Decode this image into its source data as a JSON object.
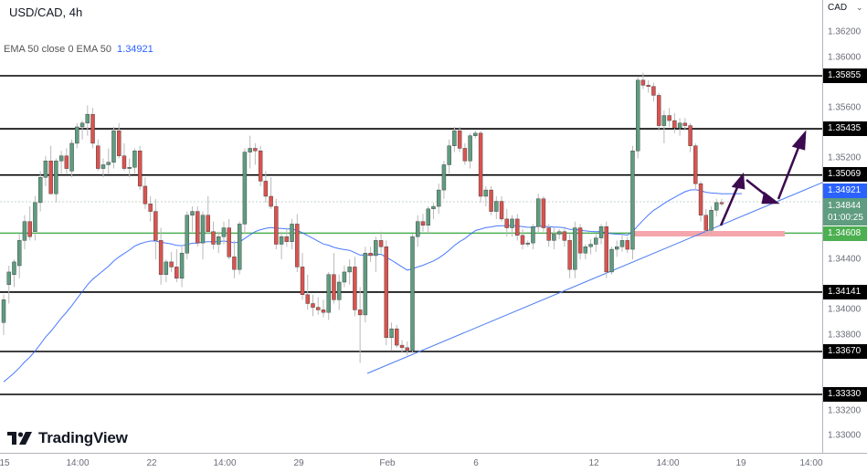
{
  "header": {
    "symbol_title": "USD/CAD, 4h",
    "indicator_legend": "EMA 50 close 0 EMA 50",
    "indicator_value": "1.34921"
  },
  "price_axis": {
    "currency": "CAD",
    "ticks": [
      "1.36200",
      "1.36000",
      "1.35600",
      "1.35200",
      "1.34400",
      "1.34000",
      "1.33800",
      "1.33200",
      "1.33000"
    ]
  },
  "time_axis": {
    "ticks": [
      "15",
      "14:00",
      "22",
      "14:00",
      "29",
      "Feb",
      "6",
      "12",
      "14:00",
      "19",
      "14:00"
    ]
  },
  "price_tags": {
    "r1": "1.35855",
    "r2": "1.35435",
    "r3": "1.35069",
    "ema": "1.34921",
    "current_price": "1.34844",
    "countdown": "01:00:25",
    "support_green": "1.34608",
    "s1": "1.34141",
    "s2": "1.33670",
    "s3": "1.33330"
  },
  "branding": {
    "logo_text": "TradingView"
  },
  "colors": {
    "bull": "#5f9c80",
    "bear": "#d9534f",
    "ema": "#2962ff",
    "support_green": "#4caf50",
    "zone_pink": "#f4a6ac",
    "arrow": "#3d0a4f",
    "level_black": "#000000"
  },
  "chart_data": {
    "type": "candlestick",
    "title": "USD/CAD, 4h",
    "xlabel": "",
    "ylabel": "CAD",
    "ylim": [
      1.329,
      1.3645
    ],
    "x_ticks": [
      "15",
      "14:00",
      "22",
      "14:00",
      "29",
      "Feb",
      "6",
      "12",
      "14:00",
      "19",
      "14:00"
    ],
    "y_ticks": [
      1.33,
      1.332,
      1.334,
      1.336,
      1.338,
      1.34,
      1.342,
      1.344,
      1.346,
      1.348,
      1.35,
      1.352,
      1.354,
      1.356,
      1.358,
      1.36,
      1.362
    ],
    "horizontal_levels": [
      {
        "name": "resistance",
        "value": 1.35855,
        "color": "#000000"
      },
      {
        "name": "resistance",
        "value": 1.35435,
        "color": "#000000"
      },
      {
        "name": "resistance",
        "value": 1.35069,
        "color": "#000000"
      },
      {
        "name": "support",
        "value": 1.34608,
        "color": "#4caf50"
      },
      {
        "name": "support",
        "value": 1.34141,
        "color": "#000000"
      },
      {
        "name": "support",
        "value": 1.3367,
        "color": "#000000"
      },
      {
        "name": "support",
        "value": 1.3333,
        "color": "#000000"
      }
    ],
    "indicators": [
      {
        "name": "EMA 50",
        "last": 1.34921
      }
    ],
    "last_price": 1.34844,
    "trendline": {
      "from": {
        "x": "Feb 1",
        "y": 1.336
      },
      "to": {
        "x": "Feb 21",
        "y": 1.3491
      }
    },
    "projection_arrows": "Bounce from ascending trendline toward 1.3507, pullback to trendline, then continuation toward 1.3540",
    "candles_note": "OHLC approximated from pixel positions",
    "candles": [
      {
        "o": 1.339,
        "h": 1.3412,
        "l": 1.338,
        "c": 1.3408
      },
      {
        "o": 1.342,
        "h": 1.3435,
        "l": 1.3405,
        "c": 1.343
      },
      {
        "o": 1.3428,
        "h": 1.344,
        "l": 1.3418,
        "c": 1.3438
      },
      {
        "o": 1.3435,
        "h": 1.346,
        "l": 1.3425,
        "c": 1.3455
      },
      {
        "o": 1.3455,
        "h": 1.3475,
        "l": 1.3448,
        "c": 1.347
      },
      {
        "o": 1.347,
        "h": 1.3482,
        "l": 1.3455,
        "c": 1.3458
      },
      {
        "o": 1.3462,
        "h": 1.349,
        "l": 1.3455,
        "c": 1.3485
      },
      {
        "o": 1.3485,
        "h": 1.351,
        "l": 1.3478,
        "c": 1.3505
      },
      {
        "o": 1.3505,
        "h": 1.3522,
        "l": 1.3498,
        "c": 1.3518
      },
      {
        "o": 1.3518,
        "h": 1.353,
        "l": 1.3505,
        "c": 1.3492
      },
      {
        "o": 1.3492,
        "h": 1.352,
        "l": 1.3485,
        "c": 1.3518
      },
      {
        "o": 1.3518,
        "h": 1.3526,
        "l": 1.3508,
        "c": 1.3522
      },
      {
        "o": 1.3522,
        "h": 1.3528,
        "l": 1.3508,
        "c": 1.3512
      },
      {
        "o": 1.351,
        "h": 1.3535,
        "l": 1.3505,
        "c": 1.3532
      },
      {
        "o": 1.3532,
        "h": 1.3548,
        "l": 1.3528,
        "c": 1.3545
      },
      {
        "o": 1.3545,
        "h": 1.355,
        "l": 1.3535,
        "c": 1.3548
      },
      {
        "o": 1.3548,
        "h": 1.3562,
        "l": 1.3538,
        "c": 1.3555
      },
      {
        "o": 1.3555,
        "h": 1.356,
        "l": 1.3528,
        "c": 1.3532
      },
      {
        "o": 1.353,
        "h": 1.3535,
        "l": 1.351,
        "c": 1.3512
      },
      {
        "o": 1.3512,
        "h": 1.352,
        "l": 1.3505,
        "c": 1.3515
      },
      {
        "o": 1.3515,
        "h": 1.3528,
        "l": 1.3508,
        "c": 1.3517
      },
      {
        "o": 1.3517,
        "h": 1.3545,
        "l": 1.3512,
        "c": 1.3542
      },
      {
        "o": 1.3542,
        "h": 1.3548,
        "l": 1.352,
        "c": 1.3522
      },
      {
        "o": 1.3522,
        "h": 1.3532,
        "l": 1.351,
        "c": 1.3512
      },
      {
        "o": 1.3512,
        "h": 1.352,
        "l": 1.3505,
        "c": 1.3513
      },
      {
        "o": 1.3513,
        "h": 1.3528,
        "l": 1.3508,
        "c": 1.3526
      },
      {
        "o": 1.3526,
        "h": 1.353,
        "l": 1.3495,
        "c": 1.3498
      },
      {
        "o": 1.3498,
        "h": 1.3505,
        "l": 1.348,
        "c": 1.3484
      },
      {
        "o": 1.3484,
        "h": 1.349,
        "l": 1.347,
        "c": 1.3478
      },
      {
        "o": 1.3478,
        "h": 1.3488,
        "l": 1.344,
        "c": 1.3455
      },
      {
        "o": 1.3455,
        "h": 1.3465,
        "l": 1.342,
        "c": 1.3428
      },
      {
        "o": 1.3428,
        "h": 1.344,
        "l": 1.3422,
        "c": 1.3438
      },
      {
        "o": 1.3438,
        "h": 1.3446,
        "l": 1.343,
        "c": 1.3434
      },
      {
        "o": 1.3434,
        "h": 1.3448,
        "l": 1.3422,
        "c": 1.3425
      },
      {
        "o": 1.3425,
        "h": 1.345,
        "l": 1.3418,
        "c": 1.3445
      },
      {
        "o": 1.3445,
        "h": 1.3478,
        "l": 1.344,
        "c": 1.3475
      },
      {
        "o": 1.3475,
        "h": 1.3482,
        "l": 1.3462,
        "c": 1.3478
      },
      {
        "o": 1.3478,
        "h": 1.3482,
        "l": 1.345,
        "c": 1.3453
      },
      {
        "o": 1.3453,
        "h": 1.3478,
        "l": 1.344,
        "c": 1.3475
      },
      {
        "o": 1.3475,
        "h": 1.349,
        "l": 1.346,
        "c": 1.3462
      },
      {
        "o": 1.3462,
        "h": 1.347,
        "l": 1.3448,
        "c": 1.3452
      },
      {
        "o": 1.3452,
        "h": 1.3462,
        "l": 1.3445,
        "c": 1.3458
      },
      {
        "o": 1.3458,
        "h": 1.347,
        "l": 1.3452,
        "c": 1.3465
      },
      {
        "o": 1.3465,
        "h": 1.3472,
        "l": 1.344,
        "c": 1.3442
      },
      {
        "o": 1.3442,
        "h": 1.3455,
        "l": 1.3425,
        "c": 1.3432
      },
      {
        "o": 1.3432,
        "h": 1.347,
        "l": 1.3428,
        "c": 1.3468
      },
      {
        "o": 1.3468,
        "h": 1.3528,
        "l": 1.346,
        "c": 1.3525
      },
      {
        "o": 1.3525,
        "h": 1.3538,
        "l": 1.3512,
        "c": 1.3528
      },
      {
        "o": 1.3528,
        "h": 1.3532,
        "l": 1.3515,
        "c": 1.3526
      },
      {
        "o": 1.3526,
        "h": 1.353,
        "l": 1.3498,
        "c": 1.3502
      },
      {
        "o": 1.3502,
        "h": 1.351,
        "l": 1.3485,
        "c": 1.349
      },
      {
        "o": 1.349,
        "h": 1.3505,
        "l": 1.348,
        "c": 1.3482
      },
      {
        "o": 1.3482,
        "h": 1.3488,
        "l": 1.3448,
        "c": 1.3452
      },
      {
        "o": 1.3452,
        "h": 1.3462,
        "l": 1.344,
        "c": 1.3458
      },
      {
        "o": 1.3458,
        "h": 1.3465,
        "l": 1.345,
        "c": 1.3454
      },
      {
        "o": 1.3454,
        "h": 1.3472,
        "l": 1.3448,
        "c": 1.3468
      },
      {
        "o": 1.3468,
        "h": 1.3476,
        "l": 1.343,
        "c": 1.3434
      },
      {
        "o": 1.3434,
        "h": 1.3445,
        "l": 1.3408,
        "c": 1.3412
      },
      {
        "o": 1.3412,
        "h": 1.3428,
        "l": 1.34,
        "c": 1.3405
      },
      {
        "o": 1.3405,
        "h": 1.3412,
        "l": 1.3395,
        "c": 1.3402
      },
      {
        "o": 1.3402,
        "h": 1.341,
        "l": 1.3396,
        "c": 1.34
      },
      {
        "o": 1.34,
        "h": 1.3408,
        "l": 1.3394,
        "c": 1.3398
      },
      {
        "o": 1.3398,
        "h": 1.343,
        "l": 1.3392,
        "c": 1.3428
      },
      {
        "o": 1.3428,
        "h": 1.3445,
        "l": 1.3405,
        "c": 1.3408
      },
      {
        "o": 1.3408,
        "h": 1.3428,
        "l": 1.34,
        "c": 1.3422
      },
      {
        "o": 1.3422,
        "h": 1.3435,
        "l": 1.3418,
        "c": 1.343
      },
      {
        "o": 1.343,
        "h": 1.344,
        "l": 1.342,
        "c": 1.3434
      },
      {
        "o": 1.3434,
        "h": 1.3442,
        "l": 1.3395,
        "c": 1.34
      },
      {
        "o": 1.34,
        "h": 1.3418,
        "l": 1.3358,
        "c": 1.3396
      },
      {
        "o": 1.3396,
        "h": 1.345,
        "l": 1.339,
        "c": 1.3445
      },
      {
        "o": 1.3445,
        "h": 1.345,
        "l": 1.3438,
        "c": 1.3443
      },
      {
        "o": 1.3443,
        "h": 1.3458,
        "l": 1.343,
        "c": 1.3455
      },
      {
        "o": 1.3455,
        "h": 1.3462,
        "l": 1.3445,
        "c": 1.345
      },
      {
        "o": 1.345,
        "h": 1.3455,
        "l": 1.3372,
        "c": 1.3378
      },
      {
        "o": 1.3378,
        "h": 1.339,
        "l": 1.3368,
        "c": 1.3385
      },
      {
        "o": 1.3385,
        "h": 1.3388,
        "l": 1.337,
        "c": 1.3372
      },
      {
        "o": 1.3372,
        "h": 1.3376,
        "l": 1.3366,
        "c": 1.337
      },
      {
        "o": 1.337,
        "h": 1.3375,
        "l": 1.3364,
        "c": 1.3368
      },
      {
        "o": 1.3368,
        "h": 1.346,
        "l": 1.3366,
        "c": 1.3458
      },
      {
        "o": 1.3458,
        "h": 1.3475,
        "l": 1.345,
        "c": 1.347
      },
      {
        "o": 1.347,
        "h": 1.3476,
        "l": 1.3462,
        "c": 1.3467
      },
      {
        "o": 1.3467,
        "h": 1.3482,
        "l": 1.346,
        "c": 1.348
      },
      {
        "o": 1.348,
        "h": 1.3485,
        "l": 1.3472,
        "c": 1.3482
      },
      {
        "o": 1.3482,
        "h": 1.35,
        "l": 1.3476,
        "c": 1.3495
      },
      {
        "o": 1.3495,
        "h": 1.3518,
        "l": 1.3488,
        "c": 1.3515
      },
      {
        "o": 1.3515,
        "h": 1.3535,
        "l": 1.3508,
        "c": 1.353
      },
      {
        "o": 1.353,
        "h": 1.3545,
        "l": 1.3525,
        "c": 1.3542
      },
      {
        "o": 1.3542,
        "h": 1.3545,
        "l": 1.3525,
        "c": 1.3528
      },
      {
        "o": 1.3528,
        "h": 1.3532,
        "l": 1.3515,
        "c": 1.3518
      },
      {
        "o": 1.3518,
        "h": 1.354,
        "l": 1.3512,
        "c": 1.3538
      },
      {
        "o": 1.3538,
        "h": 1.3542,
        "l": 1.3536,
        "c": 1.354
      },
      {
        "o": 1.354,
        "h": 1.3542,
        "l": 1.3485,
        "c": 1.349
      },
      {
        "o": 1.349,
        "h": 1.3498,
        "l": 1.3482,
        "c": 1.3495
      },
      {
        "o": 1.3495,
        "h": 1.3498,
        "l": 1.3475,
        "c": 1.3478
      },
      {
        "o": 1.3478,
        "h": 1.349,
        "l": 1.3472,
        "c": 1.3486
      },
      {
        "o": 1.3486,
        "h": 1.349,
        "l": 1.347,
        "c": 1.3472
      },
      {
        "o": 1.3472,
        "h": 1.348,
        "l": 1.3458,
        "c": 1.3465
      },
      {
        "o": 1.3465,
        "h": 1.3475,
        "l": 1.3458,
        "c": 1.3472
      },
      {
        "o": 1.3472,
        "h": 1.3476,
        "l": 1.3455,
        "c": 1.3459
      },
      {
        "o": 1.3459,
        "h": 1.3464,
        "l": 1.3448,
        "c": 1.3452
      },
      {
        "o": 1.3452,
        "h": 1.3455,
        "l": 1.345,
        "c": 1.3453
      },
      {
        "o": 1.3453,
        "h": 1.3468,
        "l": 1.3448,
        "c": 1.3466
      },
      {
        "o": 1.3466,
        "h": 1.3492,
        "l": 1.346,
        "c": 1.3488
      },
      {
        "o": 1.3488,
        "h": 1.349,
        "l": 1.3462,
        "c": 1.3465
      },
      {
        "o": 1.3465,
        "h": 1.3468,
        "l": 1.345,
        "c": 1.3455
      },
      {
        "o": 1.3455,
        "h": 1.3465,
        "l": 1.3448,
        "c": 1.346
      },
      {
        "o": 1.346,
        "h": 1.3464,
        "l": 1.3456,
        "c": 1.3462
      },
      {
        "o": 1.3462,
        "h": 1.3466,
        "l": 1.345,
        "c": 1.3455
      },
      {
        "o": 1.3455,
        "h": 1.346,
        "l": 1.3425,
        "c": 1.3432
      },
      {
        "o": 1.3432,
        "h": 1.347,
        "l": 1.3425,
        "c": 1.3465
      },
      {
        "o": 1.3465,
        "h": 1.3468,
        "l": 1.344,
        "c": 1.3445
      },
      {
        "o": 1.3445,
        "h": 1.3452,
        "l": 1.344,
        "c": 1.345
      },
      {
        "o": 1.345,
        "h": 1.3456,
        "l": 1.3444,
        "c": 1.3452
      },
      {
        "o": 1.3452,
        "h": 1.346,
        "l": 1.3446,
        "c": 1.3457
      },
      {
        "o": 1.3457,
        "h": 1.3468,
        "l": 1.3452,
        "c": 1.3466
      },
      {
        "o": 1.3466,
        "h": 1.347,
        "l": 1.3425,
        "c": 1.343
      },
      {
        "o": 1.343,
        "h": 1.345,
        "l": 1.3428,
        "c": 1.3448
      },
      {
        "o": 1.3448,
        "h": 1.3455,
        "l": 1.3442,
        "c": 1.345
      },
      {
        "o": 1.345,
        "h": 1.346,
        "l": 1.3446,
        "c": 1.3455
      },
      {
        "o": 1.3455,
        "h": 1.3458,
        "l": 1.3445,
        "c": 1.3448
      },
      {
        "o": 1.3448,
        "h": 1.353,
        "l": 1.344,
        "c": 1.3526
      },
      {
        "o": 1.3526,
        "h": 1.3585,
        "l": 1.352,
        "c": 1.3582
      },
      {
        "o": 1.3582,
        "h": 1.3588,
        "l": 1.3575,
        "c": 1.3578
      },
      {
        "o": 1.3578,
        "h": 1.3582,
        "l": 1.3572,
        "c": 1.3577
      },
      {
        "o": 1.3577,
        "h": 1.358,
        "l": 1.3565,
        "c": 1.357
      },
      {
        "o": 1.357,
        "h": 1.3572,
        "l": 1.3542,
        "c": 1.3546
      },
      {
        "o": 1.3546,
        "h": 1.3558,
        "l": 1.3532,
        "c": 1.3554
      },
      {
        "o": 1.3554,
        "h": 1.356,
        "l": 1.3545,
        "c": 1.355
      },
      {
        "o": 1.355,
        "h": 1.3556,
        "l": 1.354,
        "c": 1.3544
      },
      {
        "o": 1.3544,
        "h": 1.3552,
        "l": 1.3538,
        "c": 1.3548
      },
      {
        "o": 1.3548,
        "h": 1.3552,
        "l": 1.3542,
        "c": 1.3546
      },
      {
        "o": 1.3546,
        "h": 1.3548,
        "l": 1.3525,
        "c": 1.353
      },
      {
        "o": 1.353,
        "h": 1.3532,
        "l": 1.3495,
        "c": 1.35
      },
      {
        "o": 1.35,
        "h": 1.3502,
        "l": 1.347,
        "c": 1.3475
      },
      {
        "o": 1.3475,
        "h": 1.348,
        "l": 1.346,
        "c": 1.3463
      },
      {
        "o": 1.3463,
        "h": 1.3482,
        "l": 1.346,
        "c": 1.3479
      },
      {
        "o": 1.3479,
        "h": 1.3488,
        "l": 1.3474,
        "c": 1.3485
      },
      {
        "o": 1.3485,
        "h": 1.3488,
        "l": 1.3482,
        "c": 1.3484
      }
    ]
  }
}
